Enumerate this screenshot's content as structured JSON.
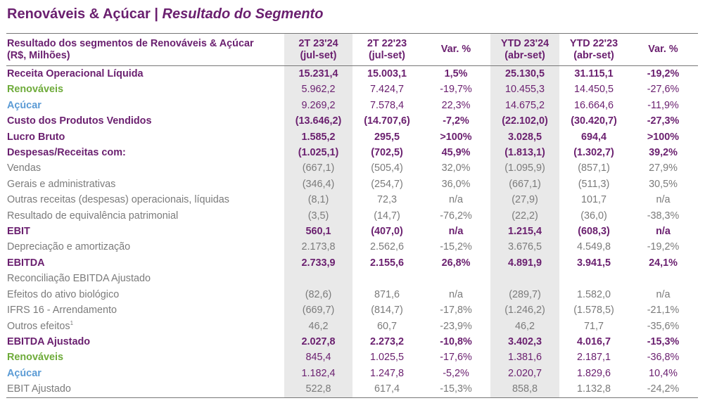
{
  "page": {
    "title": "Renováveis & Açúcar | ",
    "subtitle": "Resultado do Segmento"
  },
  "table": {
    "header": {
      "label_line1": "Resultado dos segmentos de Renováveis & Açúcar",
      "label_line2": "(R$, Milhões)",
      "columns": [
        {
          "line1": "2T 23'24",
          "line2": "(jul-set)"
        },
        {
          "line1": "2T 22'23",
          "line2": "(jul-set)"
        },
        {
          "line1": "Var. %",
          "line2": ""
        },
        {
          "line1": "YTD 23'24",
          "line2": "(abr-set)"
        },
        {
          "line1": "YTD 22'23",
          "line2": "(abr-set)"
        },
        {
          "line1": "Var. %",
          "line2": ""
        }
      ]
    },
    "rows": [
      {
        "label": "Receita Operacional Líquida",
        "values": [
          "15.231,4",
          "15.003,1",
          "1,5%",
          "25.130,5",
          "31.115,1",
          "-19,2%"
        ]
      },
      {
        "label": "Renováveis",
        "values": [
          "5.962,2",
          "7.424,7",
          "-19,7%",
          "10.455,3",
          "14.450,5",
          "-27,6%"
        ]
      },
      {
        "label": "Açúcar",
        "values": [
          "9.269,2",
          "7.578,4",
          "22,3%",
          "14.675,2",
          "16.664,6",
          "-11,9%"
        ]
      },
      {
        "label": "Custo dos Produtos Vendidos",
        "values": [
          "(13.646,2)",
          "(14.707,6)",
          "-7,2%",
          "(22.102,0)",
          "(30.420,7)",
          "-27,3%"
        ]
      },
      {
        "label": "Lucro Bruto",
        "values": [
          "1.585,2",
          "295,5",
          ">100%",
          "3.028,5",
          "694,4",
          ">100%"
        ]
      },
      {
        "label": "Despesas/Receitas com:",
        "values": [
          "(1.025,1)",
          "(702,5)",
          "45,9%",
          "(1.813,1)",
          "(1.302,7)",
          "39,2%"
        ]
      },
      {
        "label": "Vendas",
        "values": [
          "(667,1)",
          "(505,4)",
          "32,0%",
          "(1.095,9)",
          "(857,1)",
          "27,9%"
        ]
      },
      {
        "label": "Gerais e administrativas",
        "values": [
          "(346,4)",
          "(254,7)",
          "36,0%",
          "(667,1)",
          "(511,3)",
          "30,5%"
        ]
      },
      {
        "label": "Outras receitas (despesas) operacionais, líquidas",
        "values": [
          "(8,1)",
          "72,3",
          "n/a",
          "(27,9)",
          "101,7",
          "n/a"
        ]
      },
      {
        "label": "Resultado de equivalência patrimonial",
        "values": [
          "(3,5)",
          "(14,7)",
          "-76,2%",
          "(22,2)",
          "(36,0)",
          "-38,3%"
        ]
      },
      {
        "label": "EBIT",
        "values": [
          "560,1",
          "(407,0)",
          "n/a",
          "1.215,4",
          "(608,3)",
          "n/a"
        ]
      },
      {
        "label": "Depreciação e amortização",
        "values": [
          "2.173,8",
          "2.562,6",
          "-15,2%",
          "3.676,5",
          "4.549,8",
          "-19,2%"
        ]
      },
      {
        "label": "EBITDA",
        "values": [
          "2.733,9",
          "2.155,6",
          "26,8%",
          "4.891,9",
          "3.941,5",
          "24,1%"
        ]
      },
      {
        "label": "Reconciliação EBITDA Ajustado",
        "values": [
          "",
          "",
          "",
          "",
          "",
          ""
        ]
      },
      {
        "label": "Efeitos do ativo biológico",
        "values": [
          "(82,6)",
          "871,6",
          "n/a",
          "(289,7)",
          "1.582,0",
          "n/a"
        ]
      },
      {
        "label": "IFRS 16 - Arrendamento",
        "values": [
          "(669,7)",
          "(814,7)",
          "-17,8%",
          "(1.246,2)",
          "(1.578,5)",
          "-21,1%"
        ]
      },
      {
        "label": "Outros efeitos",
        "sup": "1",
        "values": [
          "46,2",
          "60,7",
          "-23,9%",
          "46,2",
          "71,7",
          "-35,6%"
        ]
      },
      {
        "label": "EBITDA Ajustado",
        "values": [
          "2.027,8",
          "2.273,2",
          "-10,8%",
          "3.402,3",
          "4.016,7",
          "-15,3%"
        ]
      },
      {
        "label": "Renováveis",
        "values": [
          "845,4",
          "1.025,5",
          "-17,6%",
          "1.381,6",
          "2.187,1",
          "-36,8%"
        ]
      },
      {
        "label": "Açúcar",
        "values": [
          "1.182,4",
          "1.247,8",
          "-5,2%",
          "2.020,7",
          "1.829,6",
          "10,4%"
        ]
      },
      {
        "label": "EBIT Ajustado",
        "values": [
          "522,8",
          "617,4",
          "-15,3%",
          "858,8",
          "1.132,8",
          "-24,2%"
        ]
      }
    ]
  },
  "colors": {
    "primary_purple": "#6a1f6f",
    "renovaveis_green": "#6eab3a",
    "acucar_blue": "#5b9bd5",
    "detail_gray": "#7b7b7b",
    "highlight_column": "#e9e9e9"
  }
}
